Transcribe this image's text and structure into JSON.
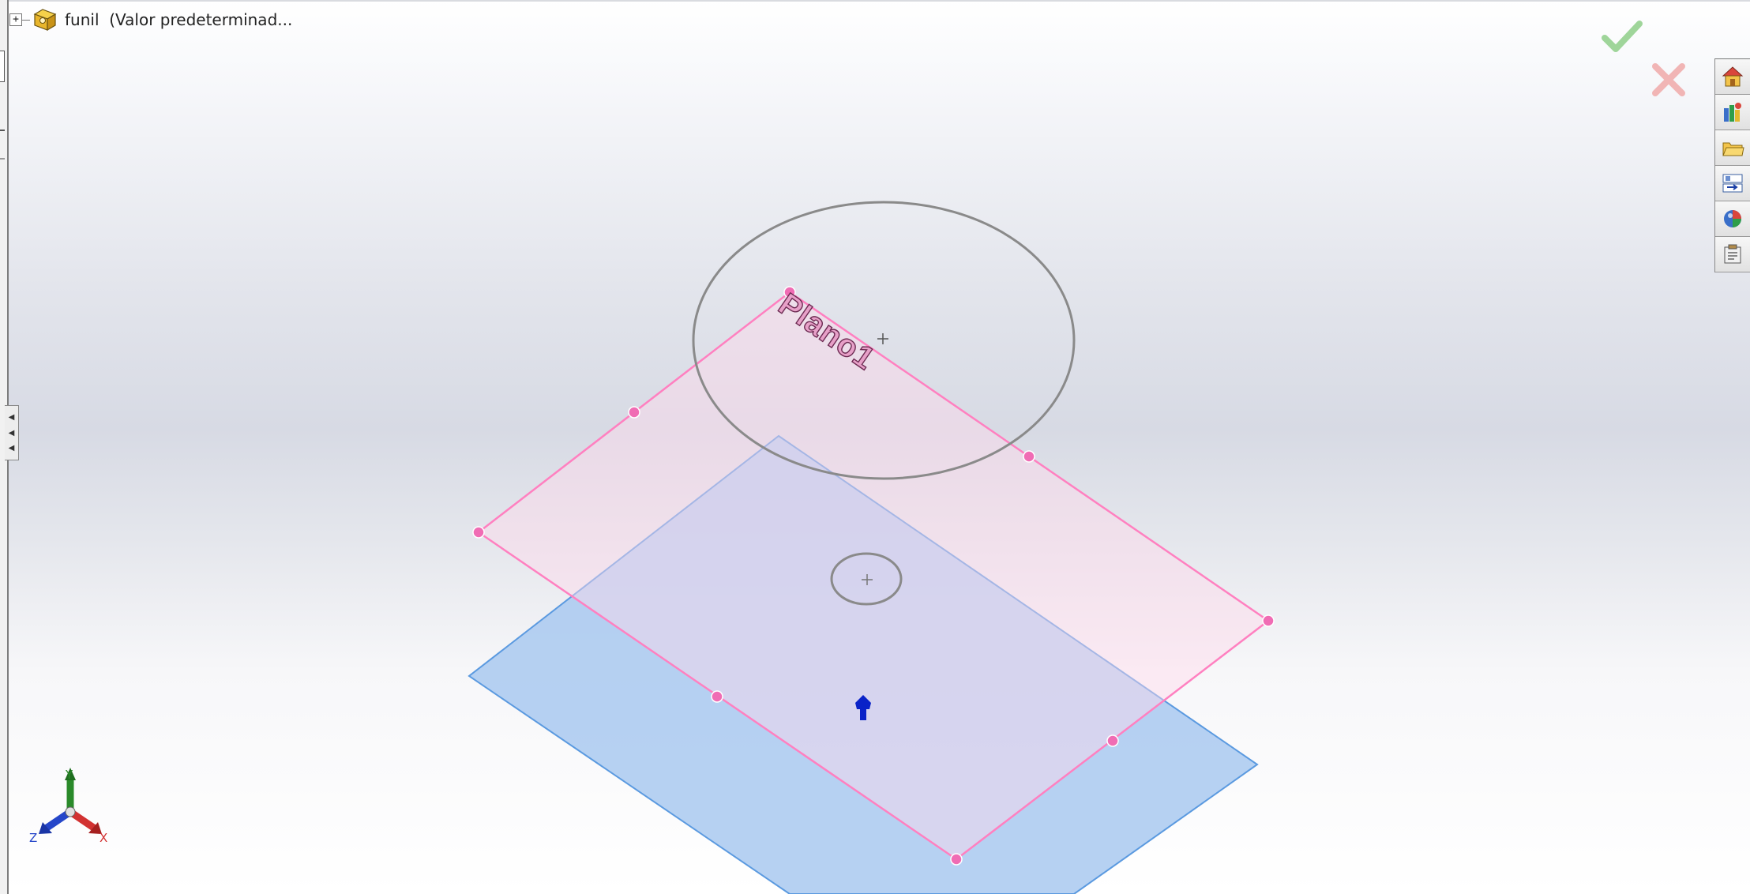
{
  "feature_tree": {
    "root_name": "funil",
    "root_config": "(Valor predeterminad...",
    "expand_symbol": "+"
  },
  "graphics": {
    "plane_label": "Plano1",
    "colors": {
      "top_plane": "#ff80c0",
      "top_plane_fill": "#ffd9ea",
      "bottom_plane": "#5b9ae0",
      "bottom_plane_fill": "#a9c9f0",
      "sketch_circles": "#8a8a8a",
      "handles": "#f06cb4",
      "origin_marker": "#0a23c8"
    }
  },
  "triad": {
    "x_label": "X",
    "y_label": "Y",
    "z_label": "Z"
  },
  "confirmation_corner": {
    "ok_icon": "check-icon",
    "cancel_icon": "x-icon"
  },
  "task_pane": {
    "buttons": [
      "home-icon",
      "design-library-icon",
      "file-explorer-icon",
      "view-palette-icon",
      "appearances-icon",
      "custom-properties-icon"
    ]
  }
}
